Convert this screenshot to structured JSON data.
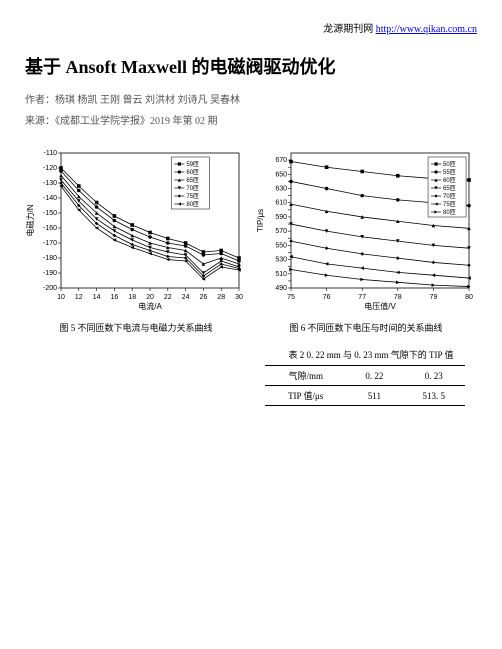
{
  "header_link_prefix": "龙源期刊网 ",
  "header_link_url": "http://www.qikan.com.cn",
  "title": "基于 Ansoft Maxwell 的电磁阀驱动优化",
  "authors_label": "作者：",
  "authors": "杨琪 杨凯 王刚 曾云 刘洪材 刘诗凡 吴春林",
  "source_label": "来源：",
  "source": "《成都工业学院学报》2019 年第 02 期",
  "chart5": {
    "type": "line",
    "caption": "图 5  不同匝数下电流与电磁力关系曲线",
    "xlabel": "电流/A",
    "ylabel": "电磁力/N",
    "xlim": [
      10,
      30
    ],
    "ylim": [
      -200,
      -110
    ],
    "xticks": [
      10,
      12,
      14,
      16,
      18,
      20,
      22,
      24,
      26,
      28,
      30
    ],
    "yticks": [
      -200,
      -190,
      -180,
      -170,
      -160,
      -150,
      -140,
      -130,
      -120,
      -110
    ],
    "series": [
      {
        "label": "59匝",
        "marker": "square",
        "color": "#000000",
        "data": [
          [
            10,
            -120
          ],
          [
            12,
            -132
          ],
          [
            14,
            -143
          ],
          [
            16,
            -152
          ],
          [
            18,
            -158
          ],
          [
            20,
            -163
          ],
          [
            22,
            -167
          ],
          [
            24,
            -170
          ],
          [
            26,
            -176
          ],
          [
            28,
            -175
          ],
          [
            30,
            -180
          ]
        ]
      },
      {
        "label": "60匝",
        "marker": "circle",
        "color": "#000000",
        "data": [
          [
            10,
            -122
          ],
          [
            12,
            -135
          ],
          [
            14,
            -146
          ],
          [
            16,
            -155
          ],
          [
            18,
            -161
          ],
          [
            20,
            -166
          ],
          [
            22,
            -170
          ],
          [
            24,
            -172
          ],
          [
            26,
            -178
          ],
          [
            28,
            -177
          ],
          [
            30,
            -182
          ]
        ]
      },
      {
        "label": "65匝",
        "marker": "triangle",
        "color": "#000000",
        "data": [
          [
            10,
            -125
          ],
          [
            12,
            -139
          ],
          [
            14,
            -150
          ],
          [
            16,
            -159
          ],
          [
            18,
            -165
          ],
          [
            20,
            -170
          ],
          [
            22,
            -173
          ],
          [
            24,
            -175
          ],
          [
            26,
            -184
          ],
          [
            28,
            -180
          ],
          [
            30,
            -184
          ]
        ]
      },
      {
        "label": "70匝",
        "marker": "triangledown",
        "color": "#000000",
        "data": [
          [
            10,
            -128
          ],
          [
            12,
            -142
          ],
          [
            14,
            -154
          ],
          [
            16,
            -162
          ],
          [
            18,
            -168
          ],
          [
            20,
            -173
          ],
          [
            22,
            -176
          ],
          [
            24,
            -178
          ],
          [
            26,
            -190
          ],
          [
            28,
            -182
          ],
          [
            30,
            -186
          ]
        ]
      },
      {
        "label": "75匝",
        "marker": "diamond",
        "color": "#000000",
        "data": [
          [
            10,
            -130
          ],
          [
            12,
            -145
          ],
          [
            14,
            -157
          ],
          [
            16,
            -165
          ],
          [
            18,
            -171
          ],
          [
            20,
            -175
          ],
          [
            22,
            -179
          ],
          [
            24,
            -180
          ],
          [
            26,
            -192
          ],
          [
            28,
            -184
          ],
          [
            30,
            -187
          ]
        ]
      },
      {
        "label": "80匝",
        "marker": "triangleleft",
        "color": "#000000",
        "data": [
          [
            10,
            -132
          ],
          [
            12,
            -148
          ],
          [
            14,
            -160
          ],
          [
            16,
            -168
          ],
          [
            18,
            -173
          ],
          [
            20,
            -177
          ],
          [
            22,
            -181
          ],
          [
            24,
            -182
          ],
          [
            26,
            -194
          ],
          [
            28,
            -186
          ],
          [
            30,
            -188
          ]
        ]
      }
    ],
    "background_color": "#ffffff",
    "grid_color": "#000000",
    "axis_fontsize": 8,
    "tick_fontsize": 7
  },
  "chart6": {
    "type": "line",
    "caption": "图 6  不同匝数下电压与时间的关系曲线",
    "xlabel": "电压值/V",
    "ylabel": "TIP/μs",
    "xlim": [
      75,
      80
    ],
    "ylim": [
      490,
      680
    ],
    "xticks": [
      75,
      76,
      77,
      78,
      79,
      80
    ],
    "yticks": [
      490,
      500,
      510,
      520,
      530,
      540,
      550,
      560,
      570,
      580,
      590,
      600,
      610,
      620,
      630,
      640,
      650,
      660,
      670
    ],
    "series": [
      {
        "label": "50匝",
        "marker": "square",
        "color": "#000000",
        "data": [
          [
            75,
            668
          ],
          [
            76,
            660
          ],
          [
            77,
            654
          ],
          [
            78,
            648
          ],
          [
            79,
            644
          ],
          [
            80,
            642
          ]
        ]
      },
      {
        "label": "55匝",
        "marker": "circle",
        "color": "#000000",
        "data": [
          [
            75,
            640
          ],
          [
            76,
            630
          ],
          [
            77,
            620
          ],
          [
            78,
            614
          ],
          [
            79,
            610
          ],
          [
            80,
            606
          ]
        ]
      },
      {
        "label": "60匝",
        "marker": "triangle",
        "color": "#000000",
        "data": [
          [
            75,
            608
          ],
          [
            76,
            598
          ],
          [
            77,
            590
          ],
          [
            78,
            584
          ],
          [
            79,
            578
          ],
          [
            80,
            574
          ]
        ]
      },
      {
        "label": "65匝",
        "marker": "triangledown",
        "color": "#000000",
        "data": [
          [
            75,
            580
          ],
          [
            76,
            570
          ],
          [
            77,
            562
          ],
          [
            78,
            556
          ],
          [
            79,
            550
          ],
          [
            80,
            546
          ]
        ]
      },
      {
        "label": "70匝",
        "marker": "diamond",
        "color": "#000000",
        "data": [
          [
            75,
            556
          ],
          [
            76,
            546
          ],
          [
            77,
            538
          ],
          [
            78,
            532
          ],
          [
            79,
            526
          ],
          [
            80,
            522
          ]
        ]
      },
      {
        "label": "75匝",
        "marker": "triangleleft",
        "color": "#000000",
        "data": [
          [
            75,
            534
          ],
          [
            76,
            524
          ],
          [
            77,
            518
          ],
          [
            78,
            512
          ],
          [
            79,
            508
          ],
          [
            80,
            504
          ]
        ]
      },
      {
        "label": "80匝",
        "marker": "triangleright",
        "color": "#000000",
        "data": [
          [
            75,
            516
          ],
          [
            76,
            508
          ],
          [
            77,
            502
          ],
          [
            78,
            498
          ],
          [
            79,
            494
          ],
          [
            80,
            492
          ]
        ]
      }
    ],
    "background_color": "#ffffff",
    "grid_color": "#000000",
    "axis_fontsize": 8,
    "tick_fontsize": 7
  },
  "table2": {
    "caption": "表 2  0. 22 mm 与 0. 23 mm 气隙下的 TIP 值",
    "rows": [
      [
        "气隙/mm",
        "0. 22",
        "0. 23"
      ],
      [
        "TIP 值/μs",
        "511",
        "513. 5"
      ]
    ]
  }
}
